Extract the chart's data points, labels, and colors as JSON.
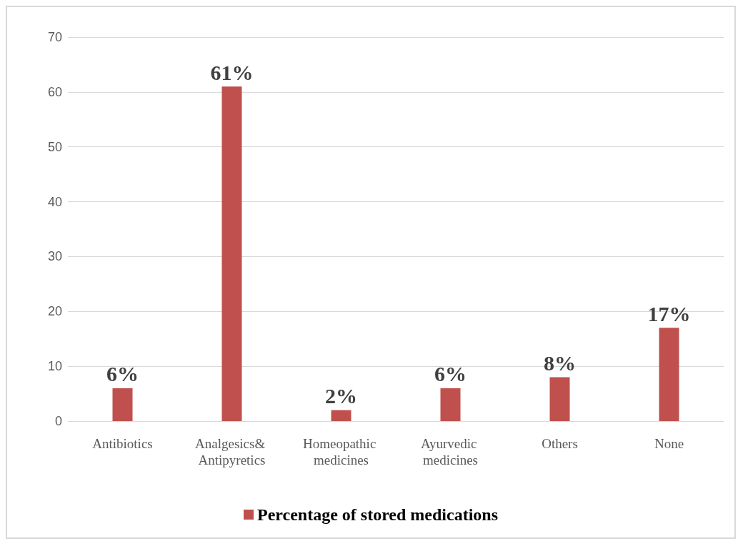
{
  "chart_data": {
    "type": "bar",
    "categories": [
      "Antibiotics",
      "Analgesics& Antipyretics",
      "Homeopathic medicines",
      "Ayurvedic medicines",
      "Others",
      "None"
    ],
    "series": [
      {
        "name": "Percentage of stored medications",
        "color": "#c0504d",
        "values": [
          6,
          61,
          2,
          6,
          8,
          17
        ],
        "value_labels": [
          "6%",
          "61%",
          "2%",
          "6%",
          "8%",
          "17%"
        ]
      }
    ],
    "ylim": [
      0,
      70
    ],
    "yticks": [
      0,
      10,
      20,
      30,
      40,
      50,
      60,
      70
    ],
    "grid": "y",
    "legend": "bottom"
  }
}
